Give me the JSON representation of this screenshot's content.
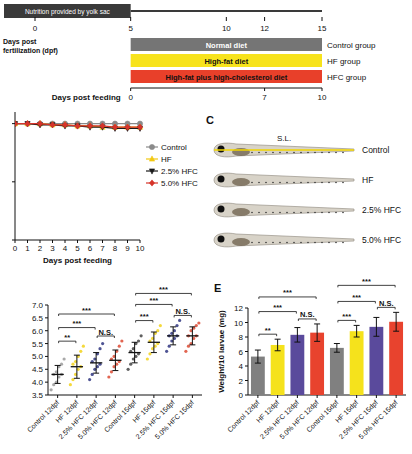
{
  "timeline": {
    "yolk_sac": {
      "label": "Nutrition provided by yolk sac",
      "end": 5
    },
    "dpf_label": "Days post fertilization (dpf)",
    "dpf_lim": [
      0,
      15
    ],
    "dpf_ticks": [
      0,
      5,
      10,
      12,
      15
    ],
    "groups": [
      {
        "diet": "Normal diet",
        "group": "Control group",
        "color": "#757575",
        "start": 5,
        "end": 15
      },
      {
        "diet": "High-fat diet",
        "group": "HF group",
        "color": "#f7e31c",
        "start": 5,
        "end": 15
      },
      {
        "diet": "High-fat plus high-cholesterol diet",
        "group": "HFC group",
        "color": "#e8402a",
        "start": 5,
        "end": 15
      }
    ],
    "feeding_label": "Days post feeding",
    "feeding_lim": [
      0,
      10
    ],
    "feeding_ticks": [
      0,
      7,
      10
    ]
  },
  "images": {
    "panel": "C",
    "scale_label": "S.L.",
    "labels": [
      "Control",
      "HF",
      "2.5% HFC",
      "5.0% HFC"
    ]
  },
  "chart_data": [
    {
      "type": "line",
      "x_label": "Days post feeding",
      "x": [
        0,
        1,
        2,
        3,
        4,
        5,
        6,
        7,
        8,
        9,
        10
      ],
      "xlim": [
        0,
        10
      ],
      "xticks": [
        0,
        1,
        2,
        3,
        4,
        5,
        6,
        7,
        8,
        9,
        10
      ],
      "ylim": [
        0,
        110
      ],
      "yticks": [
        0,
        50,
        100
      ],
      "tick_labels": "x",
      "legend": "right",
      "series": [
        {
          "name": "Control",
          "color": "#8a8a8a",
          "marker": "circle",
          "values": [
            100,
            100,
            100,
            100,
            100,
            100,
            100,
            100,
            100,
            100,
            100
          ]
        },
        {
          "name": "HF",
          "color": "#f2c811",
          "marker": "triangle",
          "values": [
            100,
            100,
            100,
            99,
            99,
            98,
            98,
            97,
            97,
            97,
            97
          ]
        },
        {
          "name": "2.5% HFC",
          "color": "#1a1a1a",
          "marker": "triangle-down",
          "values": [
            100,
            100,
            99,
            99,
            98,
            98,
            97,
            97,
            96,
            96,
            96
          ]
        },
        {
          "name": "5.0% HFC",
          "color": "#d6342a",
          "marker": "diamond",
          "values": [
            100,
            100,
            100,
            99,
            99,
            98,
            98,
            98,
            97,
            97,
            97
          ]
        }
      ]
    },
    {
      "type": "strip",
      "categories": [
        "Control 12dpf",
        "HF 12dpf",
        "2.5% HFC 12dpf",
        "5.0% HFC 12dpf",
        "Control 15dpf",
        "HF 15dpf",
        "2.5% HFC 15dpf",
        "5.0% HFC 15dpf"
      ],
      "colors": [
        "#9a9a9a",
        "#f2d21a",
        "#2f3580",
        "#dd4a33",
        "#444444",
        "#f2d21a",
        "#2f3580",
        "#dd4a33"
      ],
      "points": [
        [
          3.7,
          3.9,
          4.0,
          4.2,
          4.3,
          4.3,
          4.4,
          4.6,
          4.7,
          4.9
        ],
        [
          3.9,
          4.1,
          4.3,
          4.5,
          4.6,
          4.7,
          4.8,
          5.0,
          5.2,
          5.4
        ],
        [
          4.1,
          4.3,
          4.5,
          4.6,
          4.7,
          4.8,
          4.9,
          5.1,
          5.3,
          5.5
        ],
        [
          4.2,
          4.4,
          4.6,
          4.7,
          4.8,
          4.9,
          5.0,
          5.2,
          5.4,
          5.6
        ],
        [
          4.5,
          4.7,
          4.9,
          5.0,
          5.1,
          5.2,
          5.3,
          5.5,
          5.6,
          5.8
        ],
        [
          4.9,
          5.1,
          5.3,
          5.4,
          5.5,
          5.6,
          5.7,
          5.9,
          6.0,
          6.2
        ],
        [
          5.2,
          5.4,
          5.6,
          5.7,
          5.8,
          5.8,
          5.9,
          6.0,
          6.2,
          6.4
        ],
        [
          5.2,
          5.4,
          5.5,
          5.7,
          5.8,
          5.8,
          6.0,
          6.1,
          6.2,
          6.3
        ]
      ],
      "means": [
        4.3,
        4.6,
        4.75,
        4.85,
        5.15,
        5.55,
        5.8,
        5.8
      ],
      "sd": [
        0.35,
        0.45,
        0.4,
        0.4,
        0.4,
        0.4,
        0.35,
        0.35
      ],
      "ylim": [
        3.5,
        7.0
      ],
      "yticks": [
        {
          "value": 3.5,
          "label": "3.5"
        },
        {
          "value": 4,
          "label": "4.0"
        },
        {
          "value": 4.5,
          "label": "4.5"
        },
        {
          "value": 5,
          "label": "5.0"
        },
        {
          "value": 5.5,
          "label": "5.5"
        },
        {
          "value": 6,
          "label": "6.0"
        },
        {
          "value": 6.5,
          "label": "6.5"
        },
        {
          "value": 7,
          "label": "7.0"
        }
      ],
      "comparisons": [
        {
          "pair": [
            0,
            1
          ],
          "label": "**"
        },
        {
          "pair": [
            0,
            2
          ],
          "label": "***"
        },
        {
          "pair": [
            0,
            3
          ],
          "label": "***"
        },
        {
          "pair": [
            2,
            3
          ],
          "label": "N.S."
        },
        {
          "pair": [
            4,
            5
          ],
          "label": "***"
        },
        {
          "pair": [
            4,
            6
          ],
          "label": "***"
        },
        {
          "pair": [
            4,
            7
          ],
          "label": "***"
        },
        {
          "pair": [
            6,
            7
          ],
          "label": "N.S."
        }
      ]
    },
    {
      "type": "bar",
      "panel": "E",
      "y_label": "Weight/10 larvae (mg)",
      "categories": [
        "Control 12dpf",
        "HF 12dpf",
        "2.5% HFC 12dpf",
        "5.0% HFC 12dpf",
        "Control 15dpf",
        "HF 15dpf",
        "2.5% HFC 15dpf",
        "5.0% HFC 15dpf"
      ],
      "colors": [
        "#808080",
        "#f5e21c",
        "#5a4a9c",
        "#e8432e",
        "#808080",
        "#f5e21c",
        "#5a4a9c",
        "#e8432e"
      ],
      "values": [
        5.3,
        6.9,
        8.3,
        8.6,
        6.5,
        8.8,
        9.4,
        10.1
      ],
      "errors": [
        0.9,
        0.8,
        1.0,
        1.2,
        0.6,
        0.8,
        1.3,
        1.3
      ],
      "ylim": [
        0,
        12
      ],
      "yticks": [
        0,
        2,
        4,
        6,
        8,
        10,
        12
      ],
      "comparisons": [
        {
          "pair": [
            0,
            1
          ],
          "label": "**"
        },
        {
          "pair": [
            0,
            2
          ],
          "label": "***"
        },
        {
          "pair": [
            0,
            3
          ],
          "label": "***"
        },
        {
          "pair": [
            2,
            3
          ],
          "label": "N.S."
        },
        {
          "pair": [
            4,
            5
          ],
          "label": "***"
        },
        {
          "pair": [
            4,
            6
          ],
          "label": "***"
        },
        {
          "pair": [
            4,
            7
          ],
          "label": "***"
        },
        {
          "pair": [
            6,
            7
          ],
          "label": "N.S."
        }
      ]
    }
  ]
}
